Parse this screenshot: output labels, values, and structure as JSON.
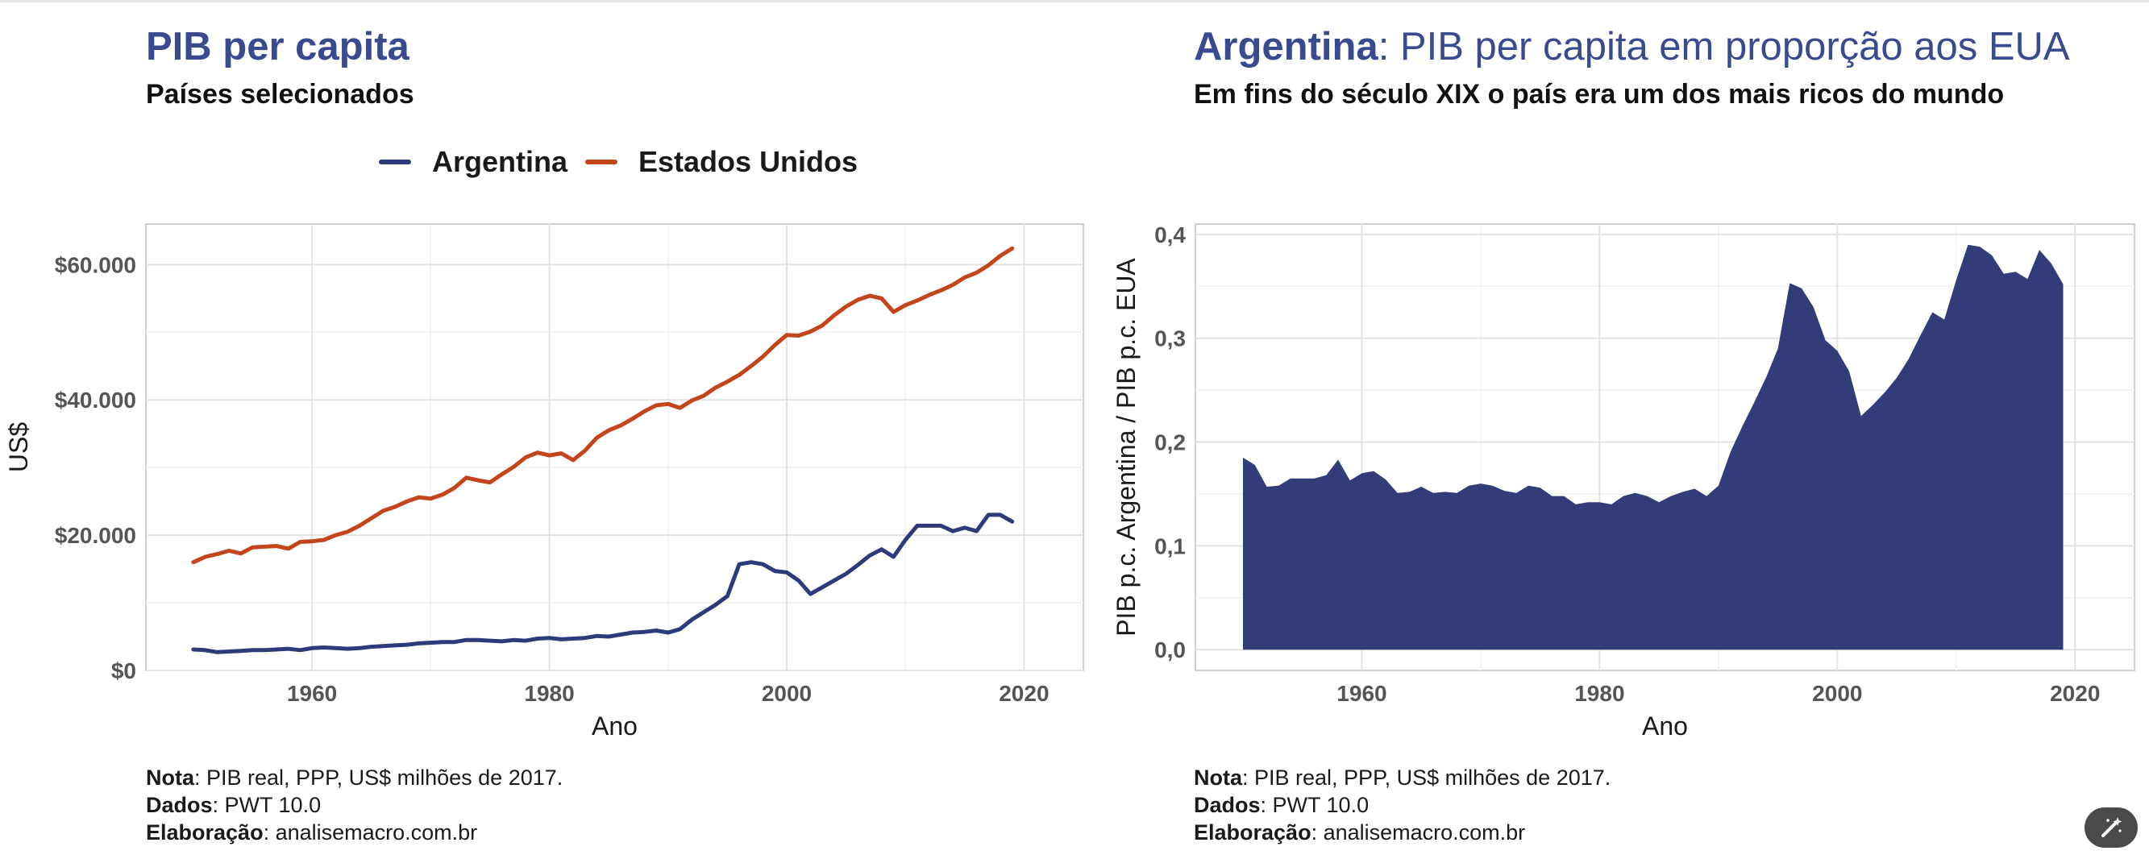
{
  "chart_data": [
    {
      "type": "line",
      "title": "PIB per capita",
      "subtitle": "Países selecionados",
      "xlabel": "Ano",
      "ylabel": "US$",
      "xlim": [
        1946,
        2025
      ],
      "ylim": [
        0,
        66000
      ],
      "xticks": [
        1960,
        1980,
        2000,
        2020
      ],
      "xtick_labels": [
        "1960",
        "1980",
        "2000",
        "2020"
      ],
      "yticks": [
        0,
        20000,
        40000,
        60000
      ],
      "ytick_labels": [
        "$0",
        "$20.000",
        "$40.000",
        "$60.000"
      ],
      "grid": true,
      "legend_position": "top",
      "x": [
        1950,
        1951,
        1952,
        1953,
        1954,
        1955,
        1956,
        1957,
        1958,
        1959,
        1960,
        1961,
        1962,
        1963,
        1964,
        1965,
        1966,
        1967,
        1968,
        1969,
        1970,
        1971,
        1972,
        1973,
        1974,
        1975,
        1976,
        1977,
        1978,
        1979,
        1980,
        1981,
        1982,
        1983,
        1984,
        1985,
        1986,
        1987,
        1988,
        1989,
        1990,
        1991,
        1992,
        1993,
        1994,
        1995,
        1996,
        1997,
        1998,
        1999,
        2000,
        2001,
        2002,
        2003,
        2004,
        2005,
        2006,
        2007,
        2008,
        2009,
        2010,
        2011,
        2012,
        2013,
        2014,
        2015,
        2016,
        2017,
        2018,
        2019
      ],
      "series": [
        {
          "name": "Argentina",
          "color": "#2e3a7a",
          "values": [
            3100,
            3000,
            2700,
            2800,
            2900,
            3000,
            3000,
            3100,
            3200,
            3000,
            3300,
            3400,
            3300,
            3200,
            3300,
            3500,
            3600,
            3700,
            3800,
            4000,
            4100,
            4200,
            4200,
            4500,
            4500,
            4400,
            4300,
            4500,
            4400,
            4700,
            4800,
            4600,
            4700,
            4800,
            5100,
            5000,
            5300,
            5600,
            5700,
            5900,
            5600,
            6100,
            7500,
            8600,
            9700,
            11000,
            15700,
            16000,
            15700,
            14700,
            14500,
            13300,
            11300,
            12300,
            13300,
            14300,
            15600,
            17000,
            17900,
            16800,
            19300,
            21400,
            21400,
            21400,
            20600,
            21100,
            20600,
            23000,
            23000,
            22000
          ]
        },
        {
          "name": "Estados Unidos",
          "color": "#c4451c",
          "values": [
            16000,
            16800,
            17200,
            17700,
            17300,
            18200,
            18300,
            18400,
            18000,
            19000,
            19100,
            19300,
            20000,
            20500,
            21400,
            22500,
            23600,
            24200,
            25000,
            25600,
            25400,
            26000,
            27000,
            28500,
            28100,
            27800,
            29000,
            30100,
            31500,
            32200,
            31800,
            32100,
            31100,
            32500,
            34400,
            35500,
            36200,
            37200,
            38300,
            39200,
            39400,
            38800,
            39900,
            40600,
            41800,
            42700,
            43700,
            45000,
            46400,
            48100,
            49600,
            49500,
            50100,
            51000,
            52500,
            53800,
            54800,
            55400,
            55000,
            53000,
            54000,
            54700,
            55500,
            56200,
            57000,
            58100,
            58800,
            59900,
            61300,
            62400
          ]
        }
      ],
      "notes": {
        "nota_label": "Nota",
        "nota_text": ": PIB real, PPP, US$ milhões de 2017.",
        "dados_label": "Dados",
        "dados_text": ": PWT 10.0",
        "elaboracao_label": "Elaboração",
        "elaboracao_text": ": analisemacro.com.br"
      }
    },
    {
      "type": "area",
      "title_bold": "Argentina",
      "title_rest": ": PIB per capita em proporção aos EUA",
      "subtitle": "Em fins do século XIX o país era um dos mais ricos do mundo",
      "xlabel": "Ano",
      "ylabel": "PIB p.c. Argentina / PIB p.c. EUA",
      "xlim": [
        1946,
        2025
      ],
      "ylim": [
        -0.02,
        0.41
      ],
      "xticks": [
        1960,
        1980,
        2000,
        2020
      ],
      "xtick_labels": [
        "1960",
        "1980",
        "2000",
        "2020"
      ],
      "yticks": [
        0.0,
        0.1,
        0.2,
        0.3,
        0.4
      ],
      "ytick_labels": [
        "0,0",
        "0,1",
        "0,2",
        "0,3",
        "0,4"
      ],
      "grid": true,
      "fill_color": "#323c78",
      "x": [
        1950,
        1951,
        1952,
        1953,
        1954,
        1955,
        1956,
        1957,
        1958,
        1959,
        1960,
        1961,
        1962,
        1963,
        1964,
        1965,
        1966,
        1967,
        1968,
        1969,
        1970,
        1971,
        1972,
        1973,
        1974,
        1975,
        1976,
        1977,
        1978,
        1979,
        1980,
        1981,
        1982,
        1983,
        1984,
        1985,
        1986,
        1987,
        1988,
        1989,
        1990,
        1991,
        1992,
        1993,
        1994,
        1995,
        1996,
        1997,
        1998,
        1999,
        2000,
        2001,
        2002,
        2003,
        2004,
        2005,
        2006,
        2007,
        2008,
        2009,
        2010,
        2011,
        2012,
        2013,
        2014,
        2015,
        2016,
        2017,
        2018,
        2019
      ],
      "values": [
        0.185,
        0.178,
        0.157,
        0.158,
        0.165,
        0.165,
        0.165,
        0.168,
        0.183,
        0.163,
        0.17,
        0.172,
        0.164,
        0.151,
        0.152,
        0.157,
        0.151,
        0.152,
        0.151,
        0.158,
        0.16,
        0.158,
        0.153,
        0.151,
        0.158,
        0.156,
        0.148,
        0.148,
        0.14,
        0.142,
        0.142,
        0.14,
        0.148,
        0.151,
        0.148,
        0.142,
        0.148,
        0.152,
        0.155,
        0.148,
        0.158,
        0.19,
        0.215,
        0.238,
        0.262,
        0.29,
        0.353,
        0.348,
        0.33,
        0.298,
        0.288,
        0.268,
        0.225,
        0.236,
        0.248,
        0.262,
        0.28,
        0.303,
        0.325,
        0.318,
        0.356,
        0.39,
        0.388,
        0.38,
        0.362,
        0.364,
        0.357,
        0.385,
        0.372,
        0.352
      ],
      "notes": {
        "nota_label": "Nota",
        "nota_text": ": PIB real, PPP, US$ milhões de 2017.",
        "dados_label": "Dados",
        "dados_text": ": PWT 10.0",
        "elaboracao_label": "Elaboração",
        "elaboracao_text": ": analisemacro.com.br"
      }
    }
  ],
  "ui": {
    "corner_button_icon": "magic-wand-icon"
  }
}
